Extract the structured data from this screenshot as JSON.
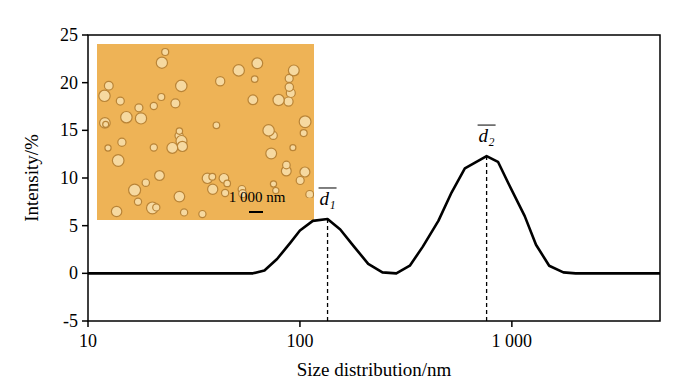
{
  "chart_data": {
    "type": "line",
    "x_label": "Size distribution/nm",
    "y_label": "Intensity/%",
    "x": [
      10,
      60,
      68,
      78,
      90,
      100,
      115,
      135,
      155,
      180,
      210,
      245,
      285,
      330,
      380,
      450,
      520,
      600,
      760,
      860,
      960,
      1150,
      1300,
      1500,
      1750,
      2000,
      5000
    ],
    "values": [
      0,
      0,
      0.3,
      1.5,
      3.2,
      4.5,
      5.5,
      5.7,
      4.6,
      2.8,
      1.0,
      0.1,
      0,
      0.8,
      2.8,
      5.5,
      8.5,
      11,
      12.3,
      11.7,
      9.5,
      6,
      3,
      0.8,
      0.1,
      0,
      0
    ],
    "color": "#000000",
    "log": "x",
    "xlim": [
      10,
      5000
    ],
    "ylim": [
      -5,
      25
    ],
    "xticks": [
      10,
      100,
      {
        "value": 1000,
        "label": "1 000"
      }
    ],
    "yticks": [
      -5,
      0,
      5,
      10,
      15,
      20,
      25
    ],
    "annotations": [
      {
        "text": "d₁",
        "x": 135,
        "y": 5.7
      },
      {
        "text": "d₂",
        "x": 760,
        "y": 12.3
      }
    ],
    "inset_text": "1 000 nm"
  }
}
